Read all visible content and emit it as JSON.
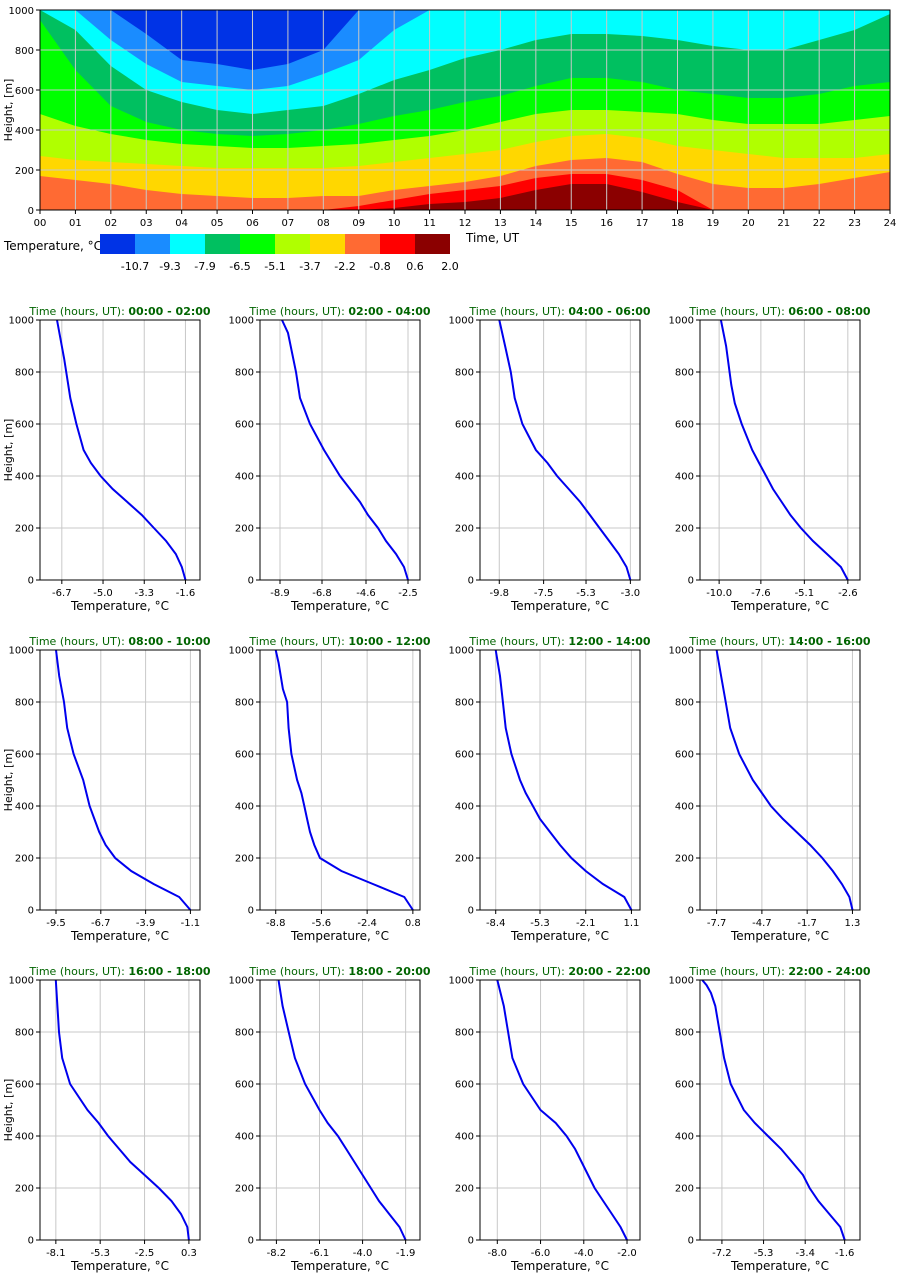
{
  "colors": {
    "levels": [
      "#0033e6",
      "#1a8cff",
      "#00ffff",
      "#00c060",
      "#00ff00",
      "#b0ff00",
      "#ffd700",
      "#ff6a33",
      "#ff0000",
      "#8b0000"
    ],
    "profile_line": "#0000ee",
    "panel_title": "#006400",
    "grid": "#c8c8c8"
  },
  "chart_data": [
    {
      "type": "heatmap",
      "ylabel": "Height, [m]",
      "xlabel": "Time, UT",
      "xlim": [
        0,
        24
      ],
      "ylim": [
        0,
        1000
      ],
      "x_ticks": [
        "00",
        "01",
        "02",
        "03",
        "04",
        "05",
        "06",
        "07",
        "08",
        "09",
        "10",
        "11",
        "12",
        "13",
        "14",
        "15",
        "16",
        "17",
        "18",
        "19",
        "20",
        "21",
        "22",
        "23",
        "24"
      ],
      "y_ticks": [
        0,
        200,
        400,
        600,
        800,
        1000
      ],
      "grid": true,
      "legend": {
        "title": "Temperature, °C",
        "labels": [
          "-10.7",
          "-9.3",
          "-7.9",
          "-6.5",
          "-5.1",
          "-3.7",
          "-2.2",
          "-0.8",
          "0.6",
          "2.0"
        ]
      },
      "x": [
        0,
        1,
        2,
        3,
        4,
        5,
        6,
        7,
        8,
        9,
        10,
        11,
        12,
        13,
        14,
        15,
        16,
        17,
        18,
        19,
        20,
        21,
        22,
        23,
        24
      ],
      "boundaries": [
        {
          "name": "-9.3",
          "y": [
            2000,
            2000,
            2000,
            880,
            750,
            730,
            700,
            730,
            800,
            1000,
            2000,
            2000,
            2000,
            2000,
            2000,
            2000,
            2000,
            2000,
            2000,
            2000,
            2000,
            2000,
            2000,
            2000,
            2000
          ]
        },
        {
          "name": "-7.9",
          "y": [
            2000,
            1000,
            850,
            730,
            640,
            620,
            600,
            620,
            680,
            750,
            900,
            1000,
            2000,
            2000,
            2000,
            2000,
            2000,
            2000,
            2000,
            2000,
            2000,
            2000,
            2000,
            2000,
            2000
          ]
        },
        {
          "name": "-6.5",
          "y": [
            2000,
            900,
            720,
            600,
            540,
            500,
            480,
            500,
            520,
            580,
            650,
            700,
            760,
            800,
            850,
            880,
            880,
            870,
            850,
            820,
            800,
            800,
            850,
            900,
            980
          ]
        },
        {
          "name": "-5.1",
          "y": [
            950,
            700,
            520,
            440,
            400,
            380,
            370,
            380,
            400,
            430,
            470,
            500,
            540,
            570,
            620,
            660,
            660,
            640,
            600,
            580,
            560,
            560,
            580,
            620,
            640
          ]
        },
        {
          "name": "-3.7",
          "y": [
            480,
            420,
            380,
            350,
            330,
            320,
            310,
            310,
            320,
            330,
            350,
            370,
            400,
            440,
            480,
            500,
            500,
            490,
            480,
            450,
            430,
            430,
            430,
            450,
            470
          ]
        },
        {
          "name": "-2.2",
          "y": [
            270,
            250,
            240,
            230,
            220,
            210,
            210,
            210,
            210,
            220,
            240,
            260,
            280,
            300,
            340,
            370,
            380,
            360,
            320,
            300,
            280,
            260,
            260,
            260,
            280
          ]
        },
        {
          "name": "-0.8",
          "y": [
            170,
            150,
            130,
            100,
            80,
            70,
            60,
            60,
            70,
            70,
            100,
            120,
            140,
            170,
            220,
            250,
            260,
            240,
            180,
            130,
            110,
            110,
            130,
            160,
            190
          ]
        },
        {
          "name": "0.6",
          "y": [
            -1,
            -1,
            -1,
            -1,
            -1,
            -1,
            -1,
            -1,
            -1,
            20,
            50,
            80,
            100,
            120,
            160,
            180,
            180,
            150,
            100,
            -1,
            -1,
            -1,
            -1,
            -1,
            -1
          ]
        },
        {
          "name": "2.0",
          "y": [
            -1,
            -1,
            -1,
            -1,
            -1,
            -1,
            -1,
            -1,
            -1,
            -1,
            10,
            30,
            40,
            60,
            100,
            130,
            130,
            90,
            40,
            -1,
            -1,
            -1,
            -1,
            -1,
            -1
          ]
        }
      ]
    },
    {
      "type": "line",
      "title_prefix": "Time (hours, UT):",
      "title_range": "00:00 - 02:00",
      "xlabel": "Temperature, °C",
      "ylabel": "Height, [m]",
      "xticks": [
        "-6.7",
        "-5.0",
        "-3.3",
        "-1.6"
      ],
      "xlim": [
        -7.6,
        -1.0
      ],
      "ylim": [
        0,
        1000
      ],
      "x": [
        -1.6,
        -1.75,
        -2.0,
        -2.4,
        -2.9,
        -3.4,
        -4.0,
        -4.6,
        -5.1,
        -5.5,
        -5.8,
        -6.1,
        -6.35,
        -6.6,
        -6.9
      ],
      "y": [
        0,
        50,
        100,
        150,
        200,
        250,
        300,
        350,
        400,
        450,
        500,
        600,
        700,
        850,
        1000
      ]
    },
    {
      "type": "line",
      "title_prefix": "Time (hours, UT):",
      "title_range": "02:00 - 04:00",
      "xlabel": "Temperature, °C",
      "ylabel": "Height, [m]",
      "xticks": [
        "-8.9",
        "-6.8",
        "-4.6",
        "-2.5"
      ],
      "xlim": [
        -9.9,
        -1.9
      ],
      "ylim": [
        0,
        1000
      ],
      "x": [
        -2.5,
        -2.7,
        -3.1,
        -3.6,
        -4.0,
        -4.5,
        -4.9,
        -5.4,
        -5.9,
        -6.3,
        -6.7,
        -7.4,
        -7.9,
        -8.1,
        -8.5,
        -8.8
      ],
      "y": [
        0,
        50,
        100,
        150,
        200,
        250,
        300,
        350,
        400,
        450,
        500,
        600,
        700,
        800,
        950,
        1000
      ]
    },
    {
      "type": "line",
      "title_prefix": "Time (hours, UT):",
      "title_range": "04:00 - 06:00",
      "xlabel": "Temperature, °C",
      "ylabel": "Height, [m]",
      "xticks": [
        "-9.8",
        "-7.5",
        "-5.3",
        "-3.0"
      ],
      "xlim": [
        -10.8,
        -2.5
      ],
      "ylim": [
        0,
        1000
      ],
      "x": [
        -3.0,
        -3.2,
        -3.6,
        -4.1,
        -4.6,
        -5.1,
        -5.6,
        -6.2,
        -6.8,
        -7.3,
        -7.9,
        -8.6,
        -9.0,
        -9.2,
        -9.5,
        -9.8
      ],
      "y": [
        0,
        50,
        100,
        150,
        200,
        250,
        300,
        350,
        400,
        450,
        500,
        600,
        700,
        800,
        900,
        1000
      ]
    },
    {
      "type": "line",
      "title_prefix": "Time (hours, UT):",
      "title_range": "06:00 - 08:00",
      "xlabel": "Temperature, °C",
      "ylabel": "Height, [m]",
      "xticks": [
        "-10.0",
        "-7.6",
        "-5.1",
        "-2.6"
      ],
      "xlim": [
        -11.1,
        -1.9
      ],
      "ylim": [
        0,
        1000
      ],
      "x": [
        -2.6,
        -3.0,
        -3.8,
        -4.6,
        -5.3,
        -5.9,
        -6.4,
        -6.9,
        -7.3,
        -7.7,
        -8.1,
        -8.7,
        -9.1,
        -9.3,
        -9.6,
        -9.9
      ],
      "y": [
        0,
        50,
        100,
        150,
        200,
        250,
        300,
        350,
        400,
        450,
        500,
        600,
        680,
        750,
        900,
        1000
      ]
    },
    {
      "type": "line",
      "title_prefix": "Time (hours, UT):",
      "title_range": "08:00 - 10:00",
      "xlabel": "Temperature, °C",
      "ylabel": "Height, [m]",
      "xticks": [
        "-9.5",
        "-6.7",
        "-3.9",
        "-1.1"
      ],
      "xlim": [
        -10.5,
        -0.5
      ],
      "ylim": [
        0,
        1000
      ],
      "x": [
        -1.1,
        -1.8,
        -3.4,
        -4.8,
        -5.8,
        -6.4,
        -6.8,
        -7.1,
        -7.4,
        -7.6,
        -7.8,
        -8.4,
        -8.8,
        -9.0,
        -9.3,
        -9.5
      ],
      "y": [
        0,
        50,
        100,
        150,
        200,
        250,
        300,
        350,
        400,
        450,
        500,
        600,
        700,
        800,
        900,
        1000
      ]
    },
    {
      "type": "line",
      "title_prefix": "Time (hours, UT):",
      "title_range": "10:00 - 12:00",
      "xlabel": "Temperature, °C",
      "ylabel": "Height, [m]",
      "xticks": [
        "-8.8",
        "-5.6",
        "-2.4",
        "0.8"
      ],
      "xlim": [
        -9.9,
        1.3
      ],
      "ylim": [
        0,
        1000
      ],
      "x": [
        0.8,
        0.2,
        -2.0,
        -4.2,
        -5.7,
        -6.1,
        -6.4,
        -6.6,
        -6.8,
        -7.0,
        -7.3,
        -7.7,
        -7.9,
        -8.0,
        -8.3,
        -8.6,
        -8.8
      ],
      "y": [
        0,
        50,
        100,
        150,
        200,
        250,
        300,
        350,
        400,
        450,
        500,
        600,
        700,
        800,
        850,
        950,
        1000
      ]
    },
    {
      "type": "line",
      "title_prefix": "Time (hours, UT):",
      "title_range": "12:00 - 14:00",
      "xlabel": "Temperature, °C",
      "ylabel": "Height, [m]",
      "xticks": [
        "-8.4",
        "-5.3",
        "-2.1",
        "1.1"
      ],
      "xlim": [
        -9.5,
        1.7
      ],
      "ylim": [
        0,
        1000
      ],
      "x": [
        1.1,
        0.6,
        -0.9,
        -2.1,
        -3.1,
        -3.9,
        -4.6,
        -5.3,
        -5.8,
        -6.3,
        -6.7,
        -7.3,
        -7.7,
        -7.9,
        -8.1,
        -8.4
      ],
      "y": [
        0,
        50,
        100,
        150,
        200,
        250,
        300,
        350,
        400,
        450,
        500,
        600,
        700,
        800,
        900,
        1000
      ]
    },
    {
      "type": "line",
      "title_prefix": "Time (hours, UT):",
      "title_range": "14:00 - 16:00",
      "xlabel": "Temperature, °C",
      "ylabel": "Height, [m]",
      "xticks": [
        "-7.7",
        "-4.7",
        "-1.7",
        "1.3"
      ],
      "xlim": [
        -8.8,
        1.8
      ],
      "ylim": [
        0,
        1000
      ],
      "x": [
        1.3,
        1.1,
        0.6,
        0.0,
        -0.7,
        -1.5,
        -2.4,
        -3.3,
        -4.1,
        -4.7,
        -5.3,
        -6.2,
        -6.8,
        -7.1,
        -7.4,
        -7.7
      ],
      "y": [
        0,
        50,
        100,
        150,
        200,
        250,
        300,
        350,
        400,
        450,
        500,
        600,
        700,
        800,
        900,
        1000
      ]
    },
    {
      "type": "line",
      "title_prefix": "Time (hours, UT):",
      "title_range": "16:00 - 18:00",
      "xlabel": "Temperature, °C",
      "ylabel": "Height, [m]",
      "xticks": [
        "-8.1",
        "-5.3",
        "-2.5",
        "0.3"
      ],
      "xlim": [
        -9.1,
        1.0
      ],
      "ylim": [
        0,
        1000
      ],
      "x": [
        0.3,
        0.2,
        -0.2,
        -0.8,
        -1.6,
        -2.5,
        -3.4,
        -4.1,
        -4.8,
        -5.4,
        -6.1,
        -7.2,
        -7.7,
        -7.9,
        -8.1
      ],
      "y": [
        0,
        50,
        100,
        150,
        200,
        250,
        300,
        350,
        400,
        450,
        500,
        600,
        700,
        800,
        1000
      ]
    },
    {
      "type": "line",
      "title_prefix": "Time (hours, UT):",
      "title_range": "18:00 - 20:00",
      "xlabel": "Temperature, °C",
      "ylabel": "Height, [m]",
      "xticks": [
        "-8.2",
        "-6.1",
        "-4.0",
        "-1.9"
      ],
      "xlim": [
        -9.0,
        -1.2
      ],
      "ylim": [
        0,
        1000
      ],
      "x": [
        -1.9,
        -2.2,
        -2.7,
        -3.2,
        -3.6,
        -4.0,
        -4.4,
        -4.8,
        -5.2,
        -5.7,
        -6.1,
        -6.8,
        -7.3,
        -7.6,
        -7.9,
        -8.1
      ],
      "y": [
        0,
        50,
        100,
        150,
        200,
        250,
        300,
        350,
        400,
        450,
        500,
        600,
        700,
        800,
        900,
        1000
      ]
    },
    {
      "type": "line",
      "title_prefix": "Time (hours, UT):",
      "title_range": "20:00 - 22:00",
      "xlabel": "Temperature, °C",
      "ylabel": "Height, [m]",
      "xticks": [
        "-8.0",
        "-6.0",
        "-4.0",
        "-2.0"
      ],
      "xlim": [
        -8.8,
        -1.4
      ],
      "ylim": [
        0,
        1000
      ],
      "x": [
        -2.0,
        -2.3,
        -2.7,
        -3.1,
        -3.5,
        -3.8,
        -4.1,
        -4.4,
        -4.8,
        -5.3,
        -6.0,
        -6.8,
        -7.3,
        -7.5,
        -7.7,
        -8.0
      ],
      "y": [
        0,
        50,
        100,
        150,
        200,
        250,
        300,
        350,
        400,
        450,
        500,
        600,
        700,
        800,
        900,
        1000
      ]
    },
    {
      "type": "line",
      "title_prefix": "Time (hours, UT):",
      "title_range": "22:00 - 24:00",
      "xlabel": "Temperature, °C",
      "ylabel": "Height, [m]",
      "xticks": [
        "-7.2",
        "-5.3",
        "-3.4",
        "-1.6"
      ],
      "xlim": [
        -8.2,
        -0.9
      ],
      "ylim": [
        0,
        1000
      ],
      "x": [
        -1.6,
        -1.8,
        -2.3,
        -2.8,
        -3.2,
        -3.5,
        -4.0,
        -4.5,
        -5.1,
        -5.7,
        -6.2,
        -6.8,
        -7.1,
        -7.3,
        -7.4,
        -7.5,
        -7.7,
        -7.9,
        -8.1
      ],
      "y": [
        0,
        50,
        100,
        150,
        200,
        250,
        300,
        350,
        400,
        450,
        500,
        600,
        700,
        800,
        850,
        900,
        950,
        980,
        1000
      ]
    }
  ]
}
